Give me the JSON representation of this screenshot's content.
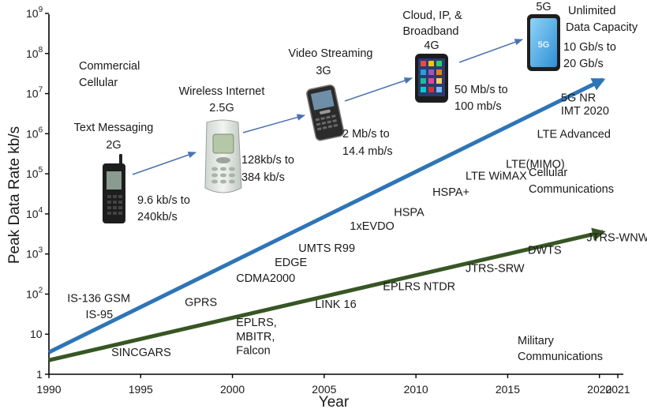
{
  "chart_data": {
    "type": "line",
    "title": "",
    "xlabel": "Year",
    "ylabel": "Peak Data Rate kb/s",
    "xlim": [
      1990,
      2021
    ],
    "ylim_log10": [
      0,
      9
    ],
    "x_ticks": [
      "1990",
      "1995",
      "2000",
      "2005",
      "2010",
      "2015",
      "2020",
      "2021"
    ],
    "x_tick_values": [
      1990,
      1995,
      2000,
      2005,
      2010,
      2015,
      2020,
      2021
    ],
    "y_ticks": [
      {
        "exp": 0,
        "base": "1",
        "sup": ""
      },
      {
        "exp": 1,
        "base": "10",
        "sup": ""
      },
      {
        "exp": 2,
        "base": "10",
        "sup": "2"
      },
      {
        "exp": 3,
        "base": "10",
        "sup": "3"
      },
      {
        "exp": 4,
        "base": "10",
        "sup": "4"
      },
      {
        "exp": 5,
        "base": "10",
        "sup": "5"
      },
      {
        "exp": 6,
        "base": "10",
        "sup": "6"
      },
      {
        "exp": 7,
        "base": "10",
        "sup": "7"
      },
      {
        "exp": 8,
        "base": "10",
        "sup": "8"
      },
      {
        "exp": 9,
        "base": "10",
        "sup": "9"
      }
    ],
    "series": [
      {
        "name": "Commercial Cellular",
        "color": "#2e75b6",
        "start": [
          1990,
          0.55
        ],
        "end": [
          2020.2,
          7.35
        ]
      },
      {
        "name": "Military Communications",
        "color": "#375623",
        "start": [
          1990,
          0.35
        ],
        "end": [
          2020.2,
          3.55
        ]
      }
    ],
    "commercial_labels": [
      {
        "text": "IS-136 GSM",
        "x": 1991,
        "y": 1.8
      },
      {
        "text": "IS-95",
        "x": 1992,
        "y": 1.4
      },
      {
        "text": "GPRS",
        "x": 1997.4,
        "y": 1.7
      },
      {
        "text": "CDMA2000",
        "x": 2000.2,
        "y": 2.3
      },
      {
        "text": "EDGE",
        "x": 2002.3,
        "y": 2.7
      },
      {
        "text": "UMTS R99",
        "x": 2003.6,
        "y": 3.05
      },
      {
        "text": "1xEVDO",
        "x": 2006.4,
        "y": 3.6
      },
      {
        "text": "HSPA",
        "x": 2008.8,
        "y": 3.95
      },
      {
        "text": "HSPA+",
        "x": 2010.9,
        "y": 4.45
      },
      {
        "text": "LTE WiMAX",
        "x": 2012.7,
        "y": 4.85
      },
      {
        "text": "LTE(MIMO)",
        "x": 2014.9,
        "y": 5.15
      },
      {
        "text": "LTE Advanced",
        "x": 2016.6,
        "y": 5.9
      },
      {
        "text": "5G NR",
        "x": 2017.9,
        "y": 6.8
      },
      {
        "text": "IMT 2020",
        "x": 2017.9,
        "y": 6.48
      }
    ],
    "military_labels": [
      {
        "text": "SINCGARS",
        "x": 1993.4,
        "y": 0.45
      },
      {
        "text": "EPLRS,",
        "x": 2000.2,
        "y": 1.2
      },
      {
        "text": "MBITR,",
        "x": 2000.2,
        "y": 0.85
      },
      {
        "text": "Falcon",
        "x": 2000.2,
        "y": 0.5
      },
      {
        "text": "LINK 16",
        "x": 2004.5,
        "y": 1.65
      },
      {
        "text": "EPLRS NTDR",
        "x": 2008.2,
        "y": 2.1
      },
      {
        "text": "JTRS-SRW",
        "x": 2012.7,
        "y": 2.55
      },
      {
        "text": "DWTS",
        "x": 2016.1,
        "y": 3.0
      },
      {
        "text": "JTRS-WNW",
        "x": 2019.3,
        "y": 3.32
      }
    ],
    "generations": [
      {
        "id": "2g",
        "gen": "2G",
        "use": [
          "Text Messaging"
        ],
        "rate": [
          "9.6 kb/s to",
          "240kb/s"
        ]
      },
      {
        "id": "2-5g",
        "gen": "2.5G",
        "use": [
          "Wireless Internet"
        ],
        "rate": [
          "128kb/s to",
          "384 kb/s"
        ]
      },
      {
        "id": "3g",
        "gen": "3G",
        "use": [
          "Video Streaming"
        ],
        "rate": [
          "2 Mb/s to",
          "14.4 mb/s"
        ]
      },
      {
        "id": "4g",
        "gen": "4G",
        "use": [
          "Cloud, IP, &",
          "Broadband"
        ],
        "rate": [
          "50 Mb/s to",
          "100 mb/s"
        ]
      },
      {
        "id": "5g",
        "gen": "5G",
        "use": [
          "Unlimited",
          "Data Capacity"
        ],
        "rate": [
          "10 Gb/s to",
          "20 Gb/s"
        ]
      }
    ],
    "annotations": {
      "commercial_title": [
        "Commercial",
        "Cellular"
      ],
      "cellular_comm": [
        "Cellular",
        "Communications"
      ],
      "military_comm": [
        "Military",
        "Communications"
      ]
    }
  }
}
